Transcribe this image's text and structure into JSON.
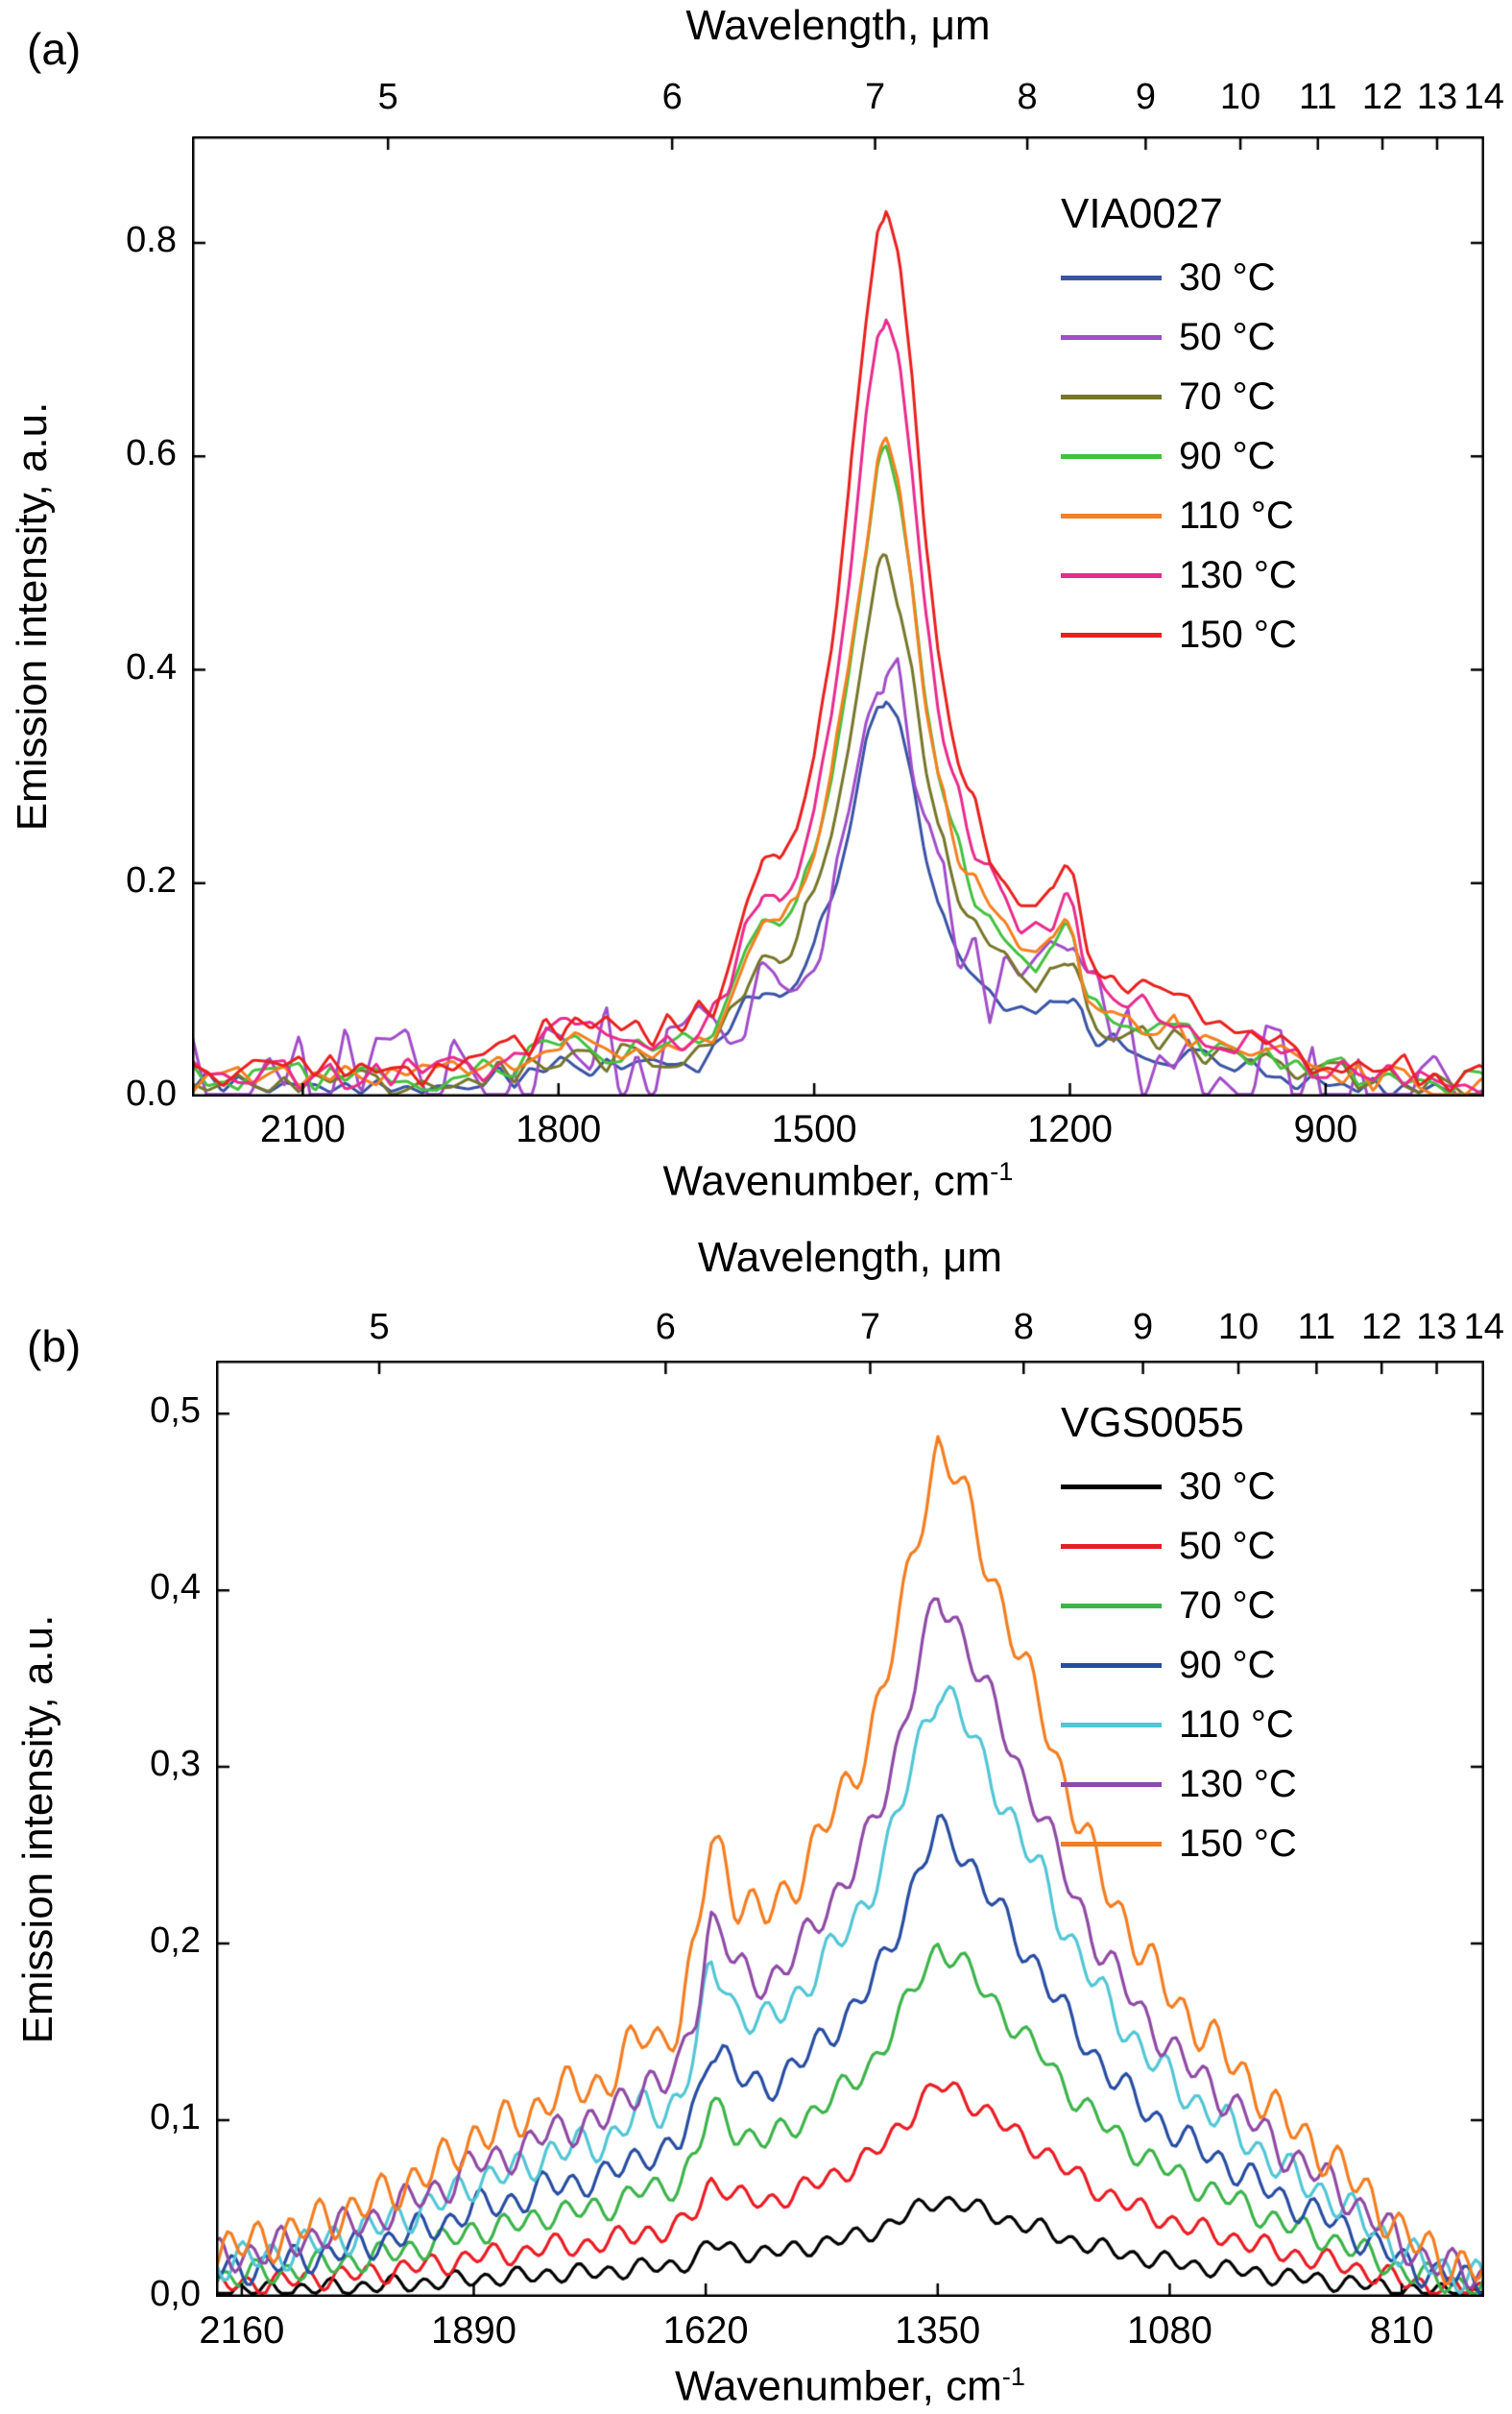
{
  "figure": {
    "background": "#ffffff"
  },
  "chart_data": [
    {
      "id": "a",
      "type": "line",
      "tag": "(a)",
      "top_axis_title": "Wavelength, μm",
      "y_axis_title": "Emission intensity, a.u.",
      "x_axis_title_base": "Wavenumber, cm",
      "x_axis_title_sup": "-1",
      "legend_title": "VIA0027",
      "legend_position": "top-right-inside",
      "grid": false,
      "x_range": [
        2230,
        714
      ],
      "y_range": [
        0,
        0.9
      ],
      "x_ticks": [
        {
          "value": 2100,
          "label": "2100"
        },
        {
          "value": 1800,
          "label": "1800"
        },
        {
          "value": 1500,
          "label": "1500"
        },
        {
          "value": 1200,
          "label": "1200"
        },
        {
          "value": 900,
          "label": "900"
        }
      ],
      "y_ticks": [
        {
          "value": 0.0,
          "label": "0.0"
        },
        {
          "value": 0.2,
          "label": "0.2"
        },
        {
          "value": 0.4,
          "label": "0.4"
        },
        {
          "value": 0.6,
          "label": "0.6"
        },
        {
          "value": 0.8,
          "label": "0.8"
        }
      ],
      "top_ticks": [
        {
          "value": 5,
          "label": "5"
        },
        {
          "value": 6,
          "label": "6"
        },
        {
          "value": 7,
          "label": "7"
        },
        {
          "value": 8,
          "label": "8"
        },
        {
          "value": 9,
          "label": "9"
        },
        {
          "value": 10,
          "label": "10"
        },
        {
          "value": 11,
          "label": "11"
        },
        {
          "value": 12,
          "label": "12"
        },
        {
          "value": 13,
          "label": "13"
        },
        {
          "value": 14,
          "label": "14"
        }
      ],
      "template_x": [
        2230,
        2160,
        2100,
        2040,
        1980,
        1920,
        1860,
        1820,
        1790,
        1760,
        1730,
        1700,
        1660,
        1620,
        1600,
        1580,
        1560,
        1540,
        1520,
        1500,
        1480,
        1460,
        1440,
        1425,
        1415,
        1400,
        1385,
        1370,
        1355,
        1340,
        1320,
        1300,
        1280,
        1260,
        1240,
        1220,
        1205,
        1195,
        1180,
        1160,
        1140,
        1120,
        1100,
        1070,
        1040,
        1000,
        960,
        920,
        880,
        840,
        800,
        760,
        714
      ],
      "template_t": [
        0.03,
        0.028,
        0.03,
        0.026,
        0.028,
        0.032,
        0.045,
        0.07,
        0.085,
        0.075,
        0.072,
        0.07,
        0.075,
        0.1,
        0.14,
        0.22,
        0.27,
        0.26,
        0.3,
        0.38,
        0.5,
        0.66,
        0.85,
        0.98,
        1.0,
        0.93,
        0.8,
        0.62,
        0.5,
        0.42,
        0.34,
        0.29,
        0.25,
        0.22,
        0.205,
        0.22,
        0.26,
        0.25,
        0.17,
        0.135,
        0.12,
        0.115,
        0.105,
        0.1,
        0.085,
        0.07,
        0.055,
        0.045,
        0.038,
        0.032,
        0.028,
        0.022,
        0.02
      ],
      "peak_wavenumber": 1415,
      "series": [
        {
          "label": "30 °C",
          "color": "#3a53a4",
          "peak": 0.38,
          "noise": 0.013
        },
        {
          "label": "50 °C",
          "color": "#a04dc8",
          "peak": 0.43,
          "noise": 0.055
        },
        {
          "label": "70 °C",
          "color": "#76762b",
          "peak": 0.5,
          "noise": 0.014
        },
        {
          "label": "90 °C",
          "color": "#43c13f",
          "peak": 0.6,
          "noise": 0.014
        },
        {
          "label": "110 °C",
          "color": "#f67f1f",
          "peak": 0.61,
          "noise": 0.016
        },
        {
          "label": "130 °C",
          "color": "#ea2a8c",
          "peak": 0.73,
          "noise": 0.016
        },
        {
          "label": "150 °C",
          "color": "#e8201e",
          "peak": 0.84,
          "noise": 0.016
        }
      ]
    },
    {
      "id": "b",
      "type": "line",
      "tag": "(b)",
      "top_axis_title": "Wavelength, μm",
      "y_axis_title": "Emission intensity, a.u.",
      "x_axis_title_base": "Wavenumber, cm",
      "x_axis_title_sup": "-1",
      "legend_title": "VGS0055",
      "legend_position": "top-right-inside",
      "grid": false,
      "x_range": [
        2190,
        714
      ],
      "y_range": [
        0,
        0.53
      ],
      "x_ticks": [
        {
          "value": 2160,
          "label": "2160"
        },
        {
          "value": 1890,
          "label": "1890"
        },
        {
          "value": 1620,
          "label": "1620"
        },
        {
          "value": 1350,
          "label": "1350"
        },
        {
          "value": 1080,
          "label": "1080"
        },
        {
          "value": 810,
          "label": "810"
        }
      ],
      "y_ticks": [
        {
          "value": 0.0,
          "label": "0,0"
        },
        {
          "value": 0.1,
          "label": "0,1"
        },
        {
          "value": 0.2,
          "label": "0,2"
        },
        {
          "value": 0.3,
          "label": "0,3"
        },
        {
          "value": 0.4,
          "label": "0,4"
        },
        {
          "value": 0.5,
          "label": "0,5"
        }
      ],
      "top_ticks": [
        {
          "value": 5,
          "label": "5"
        },
        {
          "value": 6,
          "label": "6"
        },
        {
          "value": 7,
          "label": "7"
        },
        {
          "value": 8,
          "label": "8"
        },
        {
          "value": 9,
          "label": "9"
        },
        {
          "value": 10,
          "label": "10"
        },
        {
          "value": 11,
          "label": "11"
        },
        {
          "value": 12,
          "label": "12"
        },
        {
          "value": 13,
          "label": "13"
        },
        {
          "value": 14,
          "label": "14"
        }
      ],
      "template_x": [
        2190,
        2160,
        2120,
        2080,
        2040,
        2000,
        1960,
        1920,
        1890,
        1860,
        1830,
        1800,
        1770,
        1740,
        1710,
        1690,
        1670,
        1650,
        1630,
        1615,
        1600,
        1585,
        1570,
        1550,
        1530,
        1510,
        1490,
        1470,
        1450,
        1430,
        1410,
        1390,
        1370,
        1350,
        1330,
        1310,
        1290,
        1270,
        1250,
        1230,
        1210,
        1190,
        1170,
        1150,
        1130,
        1110,
        1080,
        1050,
        1020,
        1000,
        975,
        950,
        925,
        900,
        875,
        850,
        830,
        810,
        790,
        770,
        750,
        730,
        714
      ],
      "template_t": [
        0.055,
        0.06,
        0.07,
        0.085,
        0.1,
        0.115,
        0.14,
        0.16,
        0.19,
        0.2,
        0.21,
        0.24,
        0.245,
        0.25,
        0.29,
        0.31,
        0.3,
        0.33,
        0.42,
        0.54,
        0.52,
        0.47,
        0.46,
        0.45,
        0.47,
        0.5,
        0.54,
        0.575,
        0.61,
        0.66,
        0.73,
        0.82,
        0.92,
        1.0,
        0.97,
        0.92,
        0.86,
        0.8,
        0.74,
        0.7,
        0.63,
        0.57,
        0.52,
        0.48,
        0.44,
        0.4,
        0.36,
        0.32,
        0.29,
        0.27,
        0.24,
        0.21,
        0.19,
        0.17,
        0.145,
        0.12,
        0.1,
        0.075,
        0.06,
        0.05,
        0.04,
        0.033,
        0.03
      ],
      "peak_wavenumber": 1350,
      "series": [
        {
          "label": "30 °C",
          "color": "#000000",
          "peak": 0.055,
          "noise": 0.004
        },
        {
          "label": "50 °C",
          "color": "#ea1c24",
          "peak": 0.12,
          "noise": 0.005
        },
        {
          "label": "70 °C",
          "color": "#3cb44a",
          "peak": 0.198,
          "noise": 0.006
        },
        {
          "label": "90 °C",
          "color": "#274da1",
          "peak": 0.265,
          "noise": 0.007
        },
        {
          "label": "110 °C",
          "color": "#52c6d4",
          "peak": 0.345,
          "noise": 0.008
        },
        {
          "label": "130 °C",
          "color": "#8f4aa5",
          "peak": 0.395,
          "noise": 0.008
        },
        {
          "label": "150 °C",
          "color": "#f47d20",
          "peak": 0.48,
          "noise": 0.01
        }
      ]
    }
  ]
}
